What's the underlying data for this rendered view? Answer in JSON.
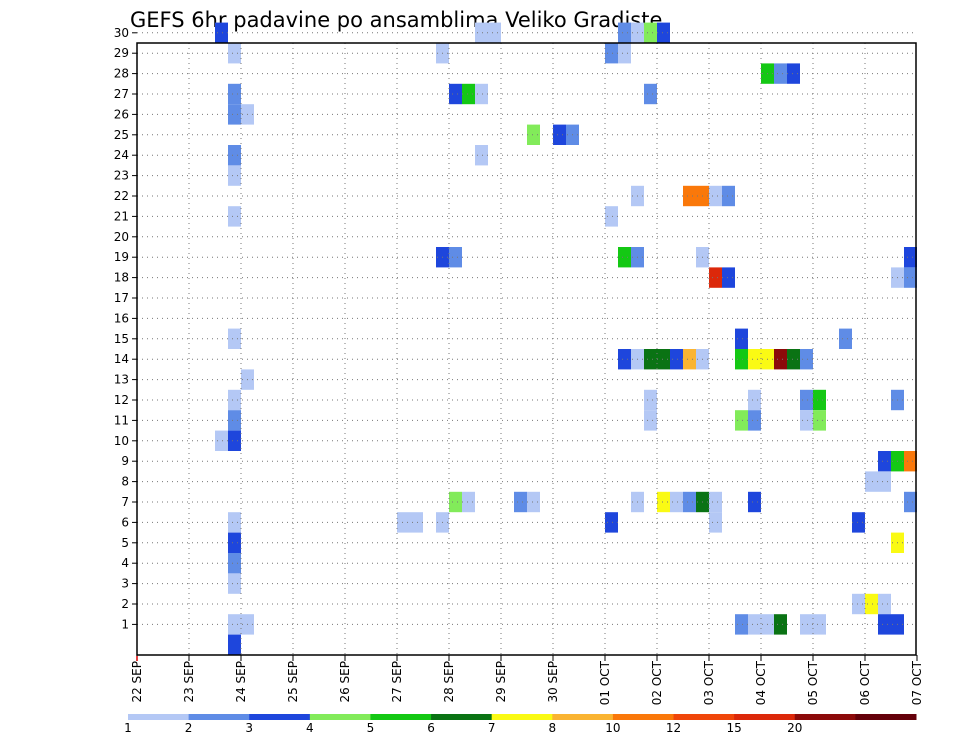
{
  "chart_data": {
    "type": "heatmap",
    "title": "GEFS 6hr padavine po ansamblima Veliko Gradiste",
    "xlabel": "",
    "ylabel": "",
    "x_ticks": [
      "22 SEP",
      "23 SEP",
      "24 SEP",
      "25 SEP",
      "26 SEP",
      "27 SEP",
      "28 SEP",
      "29 SEP",
      "30 SEP",
      "01 OCT",
      "02 OCT",
      "03 OCT",
      "04 OCT",
      "05 OCT",
      "06 OCT",
      "07 OCT"
    ],
    "y_ticks": [
      1,
      2,
      3,
      4,
      5,
      6,
      7,
      8,
      9,
      10,
      11,
      12,
      13,
      14,
      15,
      16,
      17,
      18,
      19,
      20,
      21,
      22,
      23,
      24,
      25,
      26,
      27,
      28,
      29,
      30
    ],
    "grid": true,
    "x_unit": "6h step index from 22 SEP 00Z (4 steps per day)",
    "y_unit": "ensemble member",
    "legend": {
      "levels": [
        {
          "label": "1",
          "color": "#b4c8f5"
        },
        {
          "label": "2",
          "color": "#5f8ce6"
        },
        {
          "label": "3",
          "color": "#1e46dc"
        },
        {
          "label": "4",
          "color": "#82eb5a"
        },
        {
          "label": "5",
          "color": "#14c814"
        },
        {
          "label": "6",
          "color": "#0a7314"
        },
        {
          "label": "7",
          "color": "#fafa14"
        },
        {
          "label": "8",
          "color": "#fab432"
        },
        {
          "label": "10",
          "color": "#fa780a"
        },
        {
          "label": "12",
          "color": "#f0460a"
        },
        {
          "label": "15",
          "color": "#dc280a"
        },
        {
          "label": "20",
          "color": "#8c0a0a"
        },
        {
          "label": "",
          "color": "#64000a"
        }
      ]
    },
    "cells": [
      [
        6,
        30,
        2
      ],
      [
        7,
        29,
        0
      ],
      [
        7,
        27,
        1
      ],
      [
        7,
        26,
        1
      ],
      [
        8,
        26,
        0
      ],
      [
        7,
        24,
        1
      ],
      [
        7,
        23,
        0
      ],
      [
        7,
        21,
        0
      ],
      [
        7,
        15,
        0
      ],
      [
        8,
        13,
        0
      ],
      [
        7,
        12,
        0
      ],
      [
        7,
        11,
        1
      ],
      [
        6,
        10,
        0
      ],
      [
        7,
        10,
        2
      ],
      [
        7,
        6,
        0
      ],
      [
        7,
        5,
        2
      ],
      [
        7,
        4,
        1
      ],
      [
        7,
        3,
        0
      ],
      [
        7,
        1,
        0
      ],
      [
        8,
        1,
        0
      ],
      [
        7,
        0,
        2
      ],
      [
        26,
        30,
        0
      ],
      [
        27,
        30,
        0
      ],
      [
        37,
        30,
        1
      ],
      [
        38,
        30,
        0
      ],
      [
        39,
        30,
        3
      ],
      [
        40,
        30,
        2
      ],
      [
        23,
        29,
        0
      ],
      [
        36,
        29,
        1
      ],
      [
        37,
        29,
        0
      ],
      [
        48,
        28,
        4
      ],
      [
        49,
        28,
        1
      ],
      [
        50,
        28,
        2
      ],
      [
        24,
        27,
        2
      ],
      [
        25,
        27,
        4
      ],
      [
        26,
        27,
        0
      ],
      [
        39,
        27,
        1
      ],
      [
        30,
        25,
        3
      ],
      [
        32,
        25,
        2
      ],
      [
        33,
        25,
        1
      ],
      [
        26,
        24,
        0
      ],
      [
        38,
        22,
        0
      ],
      [
        42,
        22,
        8
      ],
      [
        43,
        22,
        8
      ],
      [
        44,
        22,
        0
      ],
      [
        45,
        22,
        1
      ],
      [
        36,
        21,
        0
      ],
      [
        23,
        19,
        2
      ],
      [
        24,
        19,
        1
      ],
      [
        37,
        19,
        4
      ],
      [
        38,
        19,
        1
      ],
      [
        43,
        19,
        0
      ],
      [
        59,
        19,
        2
      ],
      [
        44,
        18,
        10
      ],
      [
        45,
        18,
        2
      ],
      [
        58,
        18,
        0
      ],
      [
        59,
        18,
        1
      ],
      [
        46,
        15,
        2
      ],
      [
        54,
        15,
        1
      ],
      [
        37,
        14,
        2
      ],
      [
        38,
        14,
        0
      ],
      [
        39,
        14,
        5
      ],
      [
        40,
        14,
        5
      ],
      [
        41,
        14,
        2
      ],
      [
        42,
        14,
        7
      ],
      [
        43,
        14,
        0
      ],
      [
        46,
        14,
        4
      ],
      [
        47,
        14,
        6
      ],
      [
        48,
        14,
        6
      ],
      [
        49,
        14,
        11
      ],
      [
        50,
        14,
        5
      ],
      [
        51,
        14,
        1
      ],
      [
        39,
        12,
        0
      ],
      [
        47,
        12,
        0
      ],
      [
        51,
        12,
        1
      ],
      [
        52,
        12,
        4
      ],
      [
        58,
        12,
        1
      ],
      [
        39,
        11,
        0
      ],
      [
        46,
        11,
        3
      ],
      [
        47,
        11,
        1
      ],
      [
        51,
        11,
        0
      ],
      [
        52,
        11,
        3
      ],
      [
        57,
        9,
        2
      ],
      [
        58,
        9,
        4
      ],
      [
        59,
        9,
        8
      ],
      [
        56,
        8,
        0
      ],
      [
        57,
        8,
        0
      ],
      [
        24,
        7,
        3
      ],
      [
        25,
        7,
        0
      ],
      [
        29,
        7,
        1
      ],
      [
        30,
        7,
        0
      ],
      [
        38,
        7,
        0
      ],
      [
        40,
        7,
        6
      ],
      [
        41,
        7,
        0
      ],
      [
        42,
        7,
        1
      ],
      [
        43,
        7,
        5
      ],
      [
        44,
        7,
        0
      ],
      [
        47,
        7,
        2
      ],
      [
        59,
        7,
        1
      ],
      [
        20,
        6,
        0
      ],
      [
        21,
        6,
        0
      ],
      [
        23,
        6,
        0
      ],
      [
        36,
        6,
        2
      ],
      [
        44,
        6,
        0
      ],
      [
        55,
        6,
        2
      ],
      [
        58,
        5,
        6
      ],
      [
        55,
        2,
        0
      ],
      [
        56,
        2,
        6
      ],
      [
        57,
        2,
        0
      ],
      [
        46,
        1,
        1
      ],
      [
        47,
        1,
        0
      ],
      [
        48,
        1,
        0
      ],
      [
        49,
        1,
        5
      ],
      [
        51,
        1,
        0
      ],
      [
        52,
        1,
        0
      ],
      [
        57,
        1,
        2
      ],
      [
        58,
        1,
        2
      ]
    ]
  }
}
